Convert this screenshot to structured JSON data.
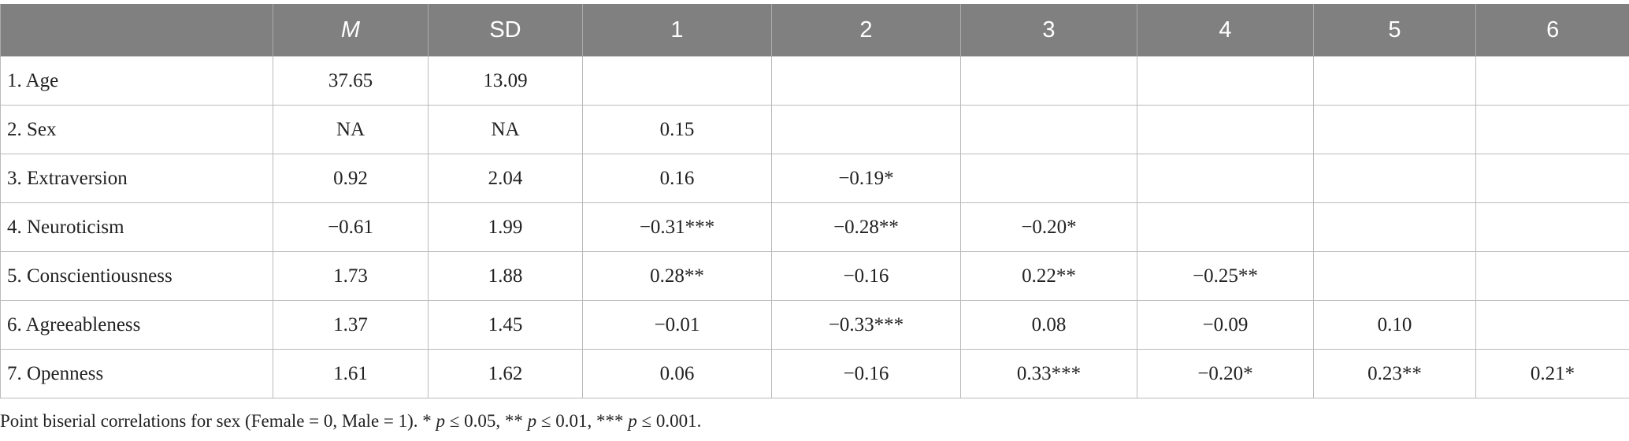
{
  "table": {
    "columns": [
      null,
      "M",
      "SD",
      "1",
      "2",
      "3",
      "4",
      "5",
      "6"
    ],
    "rows": [
      [
        "1. Age",
        "37.65",
        "13.09",
        null,
        null,
        null,
        null,
        null,
        null
      ],
      [
        "2. Sex",
        "NA",
        "NA",
        "0.15",
        null,
        null,
        null,
        null,
        null
      ],
      [
        "3. Extraversion",
        "0.92",
        "2.04",
        "0.16",
        "−0.19*",
        null,
        null,
        null,
        null
      ],
      [
        "4. Neuroticism",
        "−0.61",
        "1.99",
        "−0.31***",
        "−0.28**",
        "−0.20*",
        null,
        null,
        null
      ],
      [
        "5. Conscientiousness",
        "1.73",
        "1.88",
        "0.28**",
        "−0.16",
        "0.22**",
        "−0.25**",
        null,
        null
      ],
      [
        "6. Agreeableness",
        "1.37",
        "1.45",
        "−0.01",
        "−0.33***",
        "0.08",
        "−0.09",
        "0.10",
        null
      ],
      [
        "7. Openness",
        "1.61",
        "1.62",
        "0.06",
        "−0.16",
        "0.33***",
        "−0.20*",
        "0.23**",
        "0.21*"
      ]
    ]
  },
  "footnote": [
    "Point biserial correlations for sex (Female = 0, Male = 1). * ",
    "p",
    " ≤ 0.05, ** ",
    "p",
    " ≤ 0.01, *** ",
    "p",
    " ≤ 0.001."
  ]
}
